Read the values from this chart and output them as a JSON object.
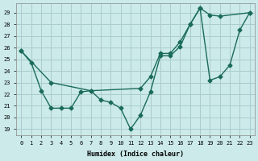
{
  "xlabel": "Humidex (Indice chaleur)",
  "bg_color": "#cceaea",
  "grid_color": "#aacccc",
  "line_color": "#1a6b5a",
  "xlim": [
    -0.5,
    23.5
  ],
  "ylim": [
    18.5,
    29.8
  ],
  "xticks": [
    0,
    1,
    2,
    3,
    4,
    5,
    6,
    7,
    8,
    9,
    10,
    11,
    12,
    13,
    14,
    15,
    16,
    17,
    18,
    19,
    20,
    21,
    22,
    23
  ],
  "yticks": [
    19,
    20,
    21,
    22,
    23,
    24,
    25,
    26,
    27,
    28,
    29
  ],
  "line1_x": [
    0,
    1,
    2,
    3,
    4,
    5,
    6,
    7,
    8,
    9,
    10,
    11,
    12,
    13,
    14,
    15,
    16,
    17,
    18,
    19,
    20,
    21,
    22,
    23
  ],
  "line1_y": [
    25.7,
    24.7,
    22.3,
    20.8,
    20.8,
    20.8,
    22.2,
    22.3,
    21.5,
    21.3,
    20.8,
    19.0,
    20.2,
    22.2,
    25.3,
    25.3,
    26.1,
    28.0,
    29.4,
    23.2,
    23.5,
    24.5,
    27.5,
    29.0
  ],
  "line2_x": [
    0,
    3,
    7,
    12,
    13,
    14,
    15,
    16,
    17,
    18,
    19,
    20,
    23
  ],
  "line2_y": [
    25.7,
    23.0,
    22.3,
    22.5,
    23.5,
    25.5,
    25.5,
    26.5,
    28.0,
    29.4,
    28.8,
    28.7,
    29.0
  ],
  "font_family": "monospace"
}
